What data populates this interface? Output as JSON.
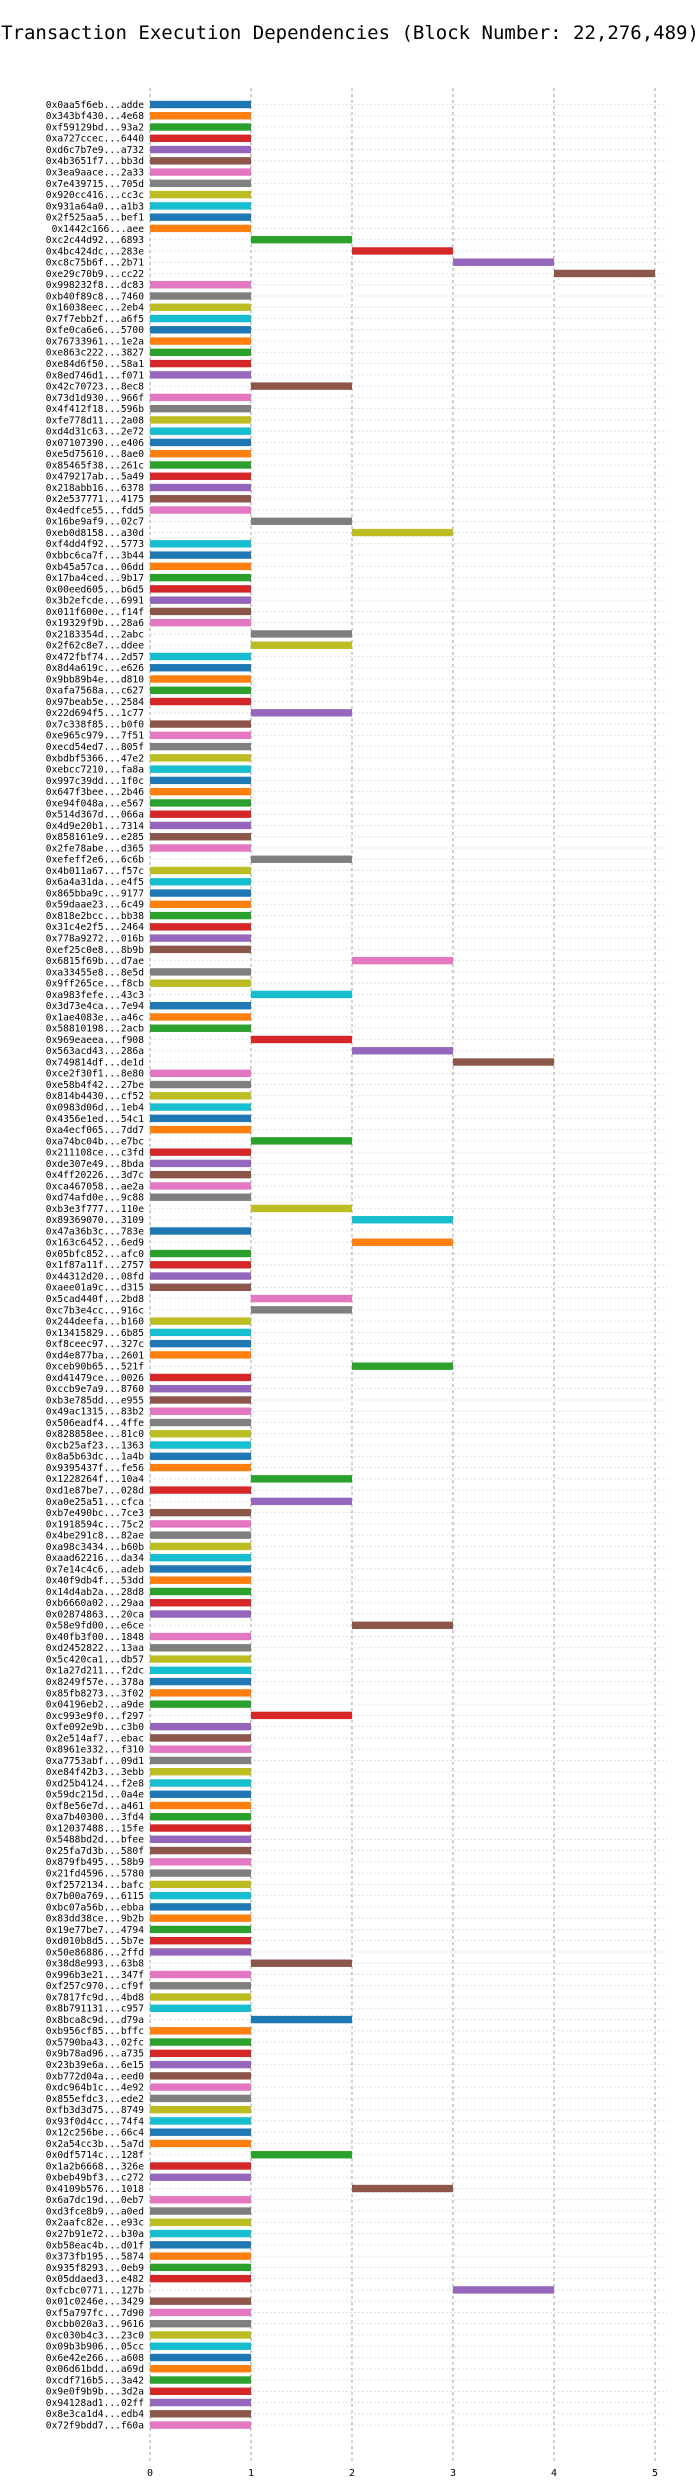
{
  "chart_data": {
    "type": "bar",
    "orientation": "horizontal-gantt",
    "title": "Transaction Execution Dependencies (Block Number: 22,276,489)",
    "xlabel": "",
    "ylabel": "",
    "xlim": [
      0,
      5
    ],
    "xticks": [
      "0",
      "1",
      "2",
      "3",
      "4",
      "5"
    ],
    "grid": true,
    "palette": [
      "#1f77b4",
      "#ff7f0e",
      "#2ca02c",
      "#d62728",
      "#9467bd",
      "#8c564b",
      "#e377c2",
      "#7f7f7f",
      "#bcbd22",
      "#17becf"
    ],
    "transactions": [
      {
        "label": "0x0aa5f6eb...adde",
        "start": 0,
        "end": 1
      },
      {
        "label": "0x343bf430...4e68",
        "start": 0,
        "end": 1
      },
      {
        "label": "0xf59129bd...93a2",
        "start": 0,
        "end": 1
      },
      {
        "label": "0xa727ccec...6440",
        "start": 0,
        "end": 1
      },
      {
        "label": "0xd6c7b7e9...a732",
        "start": 0,
        "end": 1
      },
      {
        "label": "0x4b3651f7...bb3d",
        "start": 0,
        "end": 1
      },
      {
        "label": "0x3ea9aace...2a33",
        "start": 0,
        "end": 1
      },
      {
        "label": "0x7e439715...705d",
        "start": 0,
        "end": 1
      },
      {
        "label": "0x920cc416...cc3c",
        "start": 0,
        "end": 1
      },
      {
        "label": "0x931a64a0...a1b3",
        "start": 0,
        "end": 1
      },
      {
        "label": "0x2f525aa5...bef1",
        "start": 0,
        "end": 1
      },
      {
        "label": "0x1442c166...aee",
        "start": 0,
        "end": 1
      },
      {
        "label": "0xc2c44d92...6893",
        "start": 1,
        "end": 2
      },
      {
        "label": "0x4bc424dc...283e",
        "start": 2,
        "end": 3
      },
      {
        "label": "0xc8c75b6f...2b71",
        "start": 3,
        "end": 4
      },
      {
        "label": "0xe29c70b9...cc22",
        "start": 4,
        "end": 5
      },
      {
        "label": "0x998232f8...dc83",
        "start": 0,
        "end": 1
      },
      {
        "label": "0xb40f89c8...7460",
        "start": 0,
        "end": 1
      },
      {
        "label": "0x16038eec...2eb4",
        "start": 0,
        "end": 1
      },
      {
        "label": "0x7f7ebb2f...a6f5",
        "start": 0,
        "end": 1
      },
      {
        "label": "0xfe0ca6e6...5700",
        "start": 0,
        "end": 1
      },
      {
        "label": "0x76733961...1e2a",
        "start": 0,
        "end": 1
      },
      {
        "label": "0xe863c222...3827",
        "start": 0,
        "end": 1
      },
      {
        "label": "0xe84d6f50...58a1",
        "start": 0,
        "end": 1
      },
      {
        "label": "0x8ed746d1...f071",
        "start": 0,
        "end": 1
      },
      {
        "label": "0x42c70723...8ec8",
        "start": 1,
        "end": 2
      },
      {
        "label": "0x73d1d930...966f",
        "start": 0,
        "end": 1
      },
      {
        "label": "0x4f412f18...596b",
        "start": 0,
        "end": 1
      },
      {
        "label": "0xfe778d11...2a08",
        "start": 0,
        "end": 1
      },
      {
        "label": "0xd4d31c63...2e72",
        "start": 0,
        "end": 1
      },
      {
        "label": "0x07107390...e406",
        "start": 0,
        "end": 1
      },
      {
        "label": "0xe5d75610...8ae0",
        "start": 0,
        "end": 1
      },
      {
        "label": "0x85465f38...261c",
        "start": 0,
        "end": 1
      },
      {
        "label": "0x479217ab...5a49",
        "start": 0,
        "end": 1
      },
      {
        "label": "0x218abb16...6378",
        "start": 0,
        "end": 1
      },
      {
        "label": "0x2e537771...4175",
        "start": 0,
        "end": 1
      },
      {
        "label": "0x4edfce55...fdd5",
        "start": 0,
        "end": 1
      },
      {
        "label": "0x16be9af9...02c7",
        "start": 1,
        "end": 2
      },
      {
        "label": "0xeb0d8158...a30d",
        "start": 2,
        "end": 3
      },
      {
        "label": "0xf4dd4f92...5773",
        "start": 0,
        "end": 1
      },
      {
        "label": "0xbbc6ca7f...3b44",
        "start": 0,
        "end": 1
      },
      {
        "label": "0xb45a57ca...06dd",
        "start": 0,
        "end": 1
      },
      {
        "label": "0x17ba4ced...9b17",
        "start": 0,
        "end": 1
      },
      {
        "label": "0x00eed605...b6d5",
        "start": 0,
        "end": 1
      },
      {
        "label": "0x3b2efcde...6991",
        "start": 0,
        "end": 1
      },
      {
        "label": "0x011f600e...f14f",
        "start": 0,
        "end": 1
      },
      {
        "label": "0x19329f9b...28a6",
        "start": 0,
        "end": 1
      },
      {
        "label": "0x2183354d...2abc",
        "start": 1,
        "end": 2
      },
      {
        "label": "0x2f62c8e7...ddee",
        "start": 1,
        "end": 2
      },
      {
        "label": "0x472fbf74...2d57",
        "start": 0,
        "end": 1
      },
      {
        "label": "0x8d4a619c...e626",
        "start": 0,
        "end": 1
      },
      {
        "label": "0x9bb89b4e...d810",
        "start": 0,
        "end": 1
      },
      {
        "label": "0xafa7568a...c627",
        "start": 0,
        "end": 1
      },
      {
        "label": "0x97beab5e...2584",
        "start": 0,
        "end": 1
      },
      {
        "label": "0x22d694f5...1c77",
        "start": 1,
        "end": 2
      },
      {
        "label": "0x7c338f85...b0f0",
        "start": 0,
        "end": 1
      },
      {
        "label": "0xe965c979...7f51",
        "start": 0,
        "end": 1
      },
      {
        "label": "0xecd54ed7...805f",
        "start": 0,
        "end": 1
      },
      {
        "label": "0xbdbf5366...47e2",
        "start": 0,
        "end": 1
      },
      {
        "label": "0xebcc7210...fa8a",
        "start": 0,
        "end": 1
      },
      {
        "label": "0x997c39dd...1f0c",
        "start": 0,
        "end": 1
      },
      {
        "label": "0x647f3bee...2b46",
        "start": 0,
        "end": 1
      },
      {
        "label": "0xe94f048a...e567",
        "start": 0,
        "end": 1
      },
      {
        "label": "0x514d367d...066a",
        "start": 0,
        "end": 1
      },
      {
        "label": "0x4d9e20b1...7314",
        "start": 0,
        "end": 1
      },
      {
        "label": "0x858161e9...e285",
        "start": 0,
        "end": 1
      },
      {
        "label": "0x2fe78abe...d365",
        "start": 0,
        "end": 1
      },
      {
        "label": "0xefeff2e6...6c6b",
        "start": 1,
        "end": 2
      },
      {
        "label": "0x4b011a67...f57c",
        "start": 0,
        "end": 1
      },
      {
        "label": "0x6a4a31da...e4f5",
        "start": 0,
        "end": 1
      },
      {
        "label": "0x865bba9c...9177",
        "start": 0,
        "end": 1
      },
      {
        "label": "0x59daae23...6c49",
        "start": 0,
        "end": 1
      },
      {
        "label": "0x818e2bcc...bb38",
        "start": 0,
        "end": 1
      },
      {
        "label": "0x31c4e2f5...2464",
        "start": 0,
        "end": 1
      },
      {
        "label": "0x778a9272...016b",
        "start": 0,
        "end": 1
      },
      {
        "label": "0xef25c0e8...8b9b",
        "start": 0,
        "end": 1
      },
      {
        "label": "0x6815f69b...d7ae",
        "start": 2,
        "end": 3
      },
      {
        "label": "0xa33455e8...8e5d",
        "start": 0,
        "end": 1
      },
      {
        "label": "0x9ff265ce...f8cb",
        "start": 0,
        "end": 1
      },
      {
        "label": "0xa983fefe...43c3",
        "start": 1,
        "end": 2
      },
      {
        "label": "0x3d73e4ca...7e94",
        "start": 0,
        "end": 1
      },
      {
        "label": "0x1ae4083e...a46c",
        "start": 0,
        "end": 1
      },
      {
        "label": "0x58810198...2acb",
        "start": 0,
        "end": 1
      },
      {
        "label": "0x969eaeea...f908",
        "start": 1,
        "end": 2
      },
      {
        "label": "0x563acd43...286a",
        "start": 2,
        "end": 3
      },
      {
        "label": "0x749814df...de1d",
        "start": 3,
        "end": 4
      },
      {
        "label": "0xce2f30f1...8e80",
        "start": 0,
        "end": 1
      },
      {
        "label": "0xe58b4f42...27be",
        "start": 0,
        "end": 1
      },
      {
        "label": "0x814b4430...cf52",
        "start": 0,
        "end": 1
      },
      {
        "label": "0x0983d06d...1eb4",
        "start": 0,
        "end": 1
      },
      {
        "label": "0x4356e1ed...54c1",
        "start": 0,
        "end": 1
      },
      {
        "label": "0xa4ecf065...7dd7",
        "start": 0,
        "end": 1
      },
      {
        "label": "0xa74bc04b...e7bc",
        "start": 1,
        "end": 2
      },
      {
        "label": "0x211108ce...c3fd",
        "start": 0,
        "end": 1
      },
      {
        "label": "0xde307e49...8bda",
        "start": 0,
        "end": 1
      },
      {
        "label": "0x4ff20226...3d7c",
        "start": 0,
        "end": 1
      },
      {
        "label": "0xca467058...ae2a",
        "start": 0,
        "end": 1
      },
      {
        "label": "0xd74afd0e...9c88",
        "start": 0,
        "end": 1
      },
      {
        "label": "0xb3e3f777...110e",
        "start": 1,
        "end": 2
      },
      {
        "label": "0x89369070...3109",
        "start": 2,
        "end": 3
      },
      {
        "label": "0x47a36b3c...783e",
        "start": 0,
        "end": 1
      },
      {
        "label": "0x163c6452...6ed9",
        "start": 2,
        "end": 3
      },
      {
        "label": "0x05bfc852...afc0",
        "start": 0,
        "end": 1
      },
      {
        "label": "0x1f87a11f...2757",
        "start": 0,
        "end": 1
      },
      {
        "label": "0x44312d20...08fd",
        "start": 0,
        "end": 1
      },
      {
        "label": "0xaee01a9c...d315",
        "start": 0,
        "end": 1
      },
      {
        "label": "0x5cad440f...2bd8",
        "start": 1,
        "end": 2
      },
      {
        "label": "0xc7b3e4cc...916c",
        "start": 1,
        "end": 2
      },
      {
        "label": "0x244deefa...b160",
        "start": 0,
        "end": 1
      },
      {
        "label": "0x13415829...6b85",
        "start": 0,
        "end": 1
      },
      {
        "label": "0xf8ceec97...327c",
        "start": 0,
        "end": 1
      },
      {
        "label": "0xd4e877ba...2601",
        "start": 0,
        "end": 1
      },
      {
        "label": "0xceb90b65...521f",
        "start": 2,
        "end": 3
      },
      {
        "label": "0xd41479ce...0026",
        "start": 0,
        "end": 1
      },
      {
        "label": "0xccb9e7a9...8760",
        "start": 0,
        "end": 1
      },
      {
        "label": "0xb3e785dd...e955",
        "start": 0,
        "end": 1
      },
      {
        "label": "0x49ac1315...83b2",
        "start": 0,
        "end": 1
      },
      {
        "label": "0x506eadf4...4ffe",
        "start": 0,
        "end": 1
      },
      {
        "label": "0x828858ee...81c0",
        "start": 0,
        "end": 1
      },
      {
        "label": "0xcb25af23...1363",
        "start": 0,
        "end": 1
      },
      {
        "label": "0x8a5b63dc...1a4b",
        "start": 0,
        "end": 1
      },
      {
        "label": "0x9395437f...fe56",
        "start": 0,
        "end": 1
      },
      {
        "label": "0x1228264f...10a4",
        "start": 1,
        "end": 2
      },
      {
        "label": "0xd1e87be7...028d",
        "start": 0,
        "end": 1
      },
      {
        "label": "0xa0e25a51...cfca",
        "start": 1,
        "end": 2
      },
      {
        "label": "0xb7e490bc...7ce3",
        "start": 0,
        "end": 1
      },
      {
        "label": "0x1918594c...75c2",
        "start": 0,
        "end": 1
      },
      {
        "label": "0x4be291c8...82ae",
        "start": 0,
        "end": 1
      },
      {
        "label": "0xa98c3434...b60b",
        "start": 0,
        "end": 1
      },
      {
        "label": "0xaad62216...da34",
        "start": 0,
        "end": 1
      },
      {
        "label": "0x7e14c4c6...adeb",
        "start": 0,
        "end": 1
      },
      {
        "label": "0x40f9db4f...53dd",
        "start": 0,
        "end": 1
      },
      {
        "label": "0x14d4ab2a...28d8",
        "start": 0,
        "end": 1
      },
      {
        "label": "0xb6660a02...29aa",
        "start": 0,
        "end": 1
      },
      {
        "label": "0x02874863...20ca",
        "start": 0,
        "end": 1
      },
      {
        "label": "0x58e9fd00...e6ce",
        "start": 2,
        "end": 3
      },
      {
        "label": "0x40fb3f00...1848",
        "start": 0,
        "end": 1
      },
      {
        "label": "0xd2452822...13aa",
        "start": 0,
        "end": 1
      },
      {
        "label": "0x5c420ca1...db57",
        "start": 0,
        "end": 1
      },
      {
        "label": "0x1a27d211...f2dc",
        "start": 0,
        "end": 1
      },
      {
        "label": "0x8249f57e...378a",
        "start": 0,
        "end": 1
      },
      {
        "label": "0x85fb8273...3f02",
        "start": 0,
        "end": 1
      },
      {
        "label": "0x04196eb2...a9de",
        "start": 0,
        "end": 1
      },
      {
        "label": "0xc993e9f0...f297",
        "start": 1,
        "end": 2
      },
      {
        "label": "0xfe092e9b...c3b0",
        "start": 0,
        "end": 1
      },
      {
        "label": "0x2e514af7...ebac",
        "start": 0,
        "end": 1
      },
      {
        "label": "0x8961e332...f310",
        "start": 0,
        "end": 1
      },
      {
        "label": "0xa7753abf...09d1",
        "start": 0,
        "end": 1
      },
      {
        "label": "0xe84f42b3...3ebb",
        "start": 0,
        "end": 1
      },
      {
        "label": "0xd25b4124...f2e8",
        "start": 0,
        "end": 1
      },
      {
        "label": "0x59dc215d...0a4e",
        "start": 0,
        "end": 1
      },
      {
        "label": "0xf8e56e7d...a461",
        "start": 0,
        "end": 1
      },
      {
        "label": "0xa7b40300...3fd4",
        "start": 0,
        "end": 1
      },
      {
        "label": "0x12037488...15fe",
        "start": 0,
        "end": 1
      },
      {
        "label": "0x5488bd2d...bfee",
        "start": 0,
        "end": 1
      },
      {
        "label": "0x25fa7d3b...580f",
        "start": 0,
        "end": 1
      },
      {
        "label": "0x879fb495...58b9",
        "start": 0,
        "end": 1
      },
      {
        "label": "0x21fd4596...5780",
        "start": 0,
        "end": 1
      },
      {
        "label": "0xf2572134...bafc",
        "start": 0,
        "end": 1
      },
      {
        "label": "0x7b00a769...6115",
        "start": 0,
        "end": 1
      },
      {
        "label": "0xbc07a56b...ebba",
        "start": 0,
        "end": 1
      },
      {
        "label": "0x83dd38ce...9b2b",
        "start": 0,
        "end": 1
      },
      {
        "label": "0x19e77be7...4794",
        "start": 0,
        "end": 1
      },
      {
        "label": "0xd010b8d5...5b7e",
        "start": 0,
        "end": 1
      },
      {
        "label": "0x50e86886...2ffd",
        "start": 0,
        "end": 1
      },
      {
        "label": "0x38d8e993...63b8",
        "start": 1,
        "end": 2
      },
      {
        "label": "0x996b3e21...347f",
        "start": 0,
        "end": 1
      },
      {
        "label": "0xf257c970...cf9f",
        "start": 0,
        "end": 1
      },
      {
        "label": "0x7817fc9d...4bd8",
        "start": 0,
        "end": 1
      },
      {
        "label": "0x8b791131...c957",
        "start": 0,
        "end": 1
      },
      {
        "label": "0x8bca8c9d...d79a",
        "start": 1,
        "end": 2
      },
      {
        "label": "0xb956cf85...bffc",
        "start": 0,
        "end": 1
      },
      {
        "label": "0x5790ba43...02fc",
        "start": 0,
        "end": 1
      },
      {
        "label": "0x9b78ad96...a735",
        "start": 0,
        "end": 1
      },
      {
        "label": "0x23b39e6a...6e15",
        "start": 0,
        "end": 1
      },
      {
        "label": "0xb772d04a...eed0",
        "start": 0,
        "end": 1
      },
      {
        "label": "0xdc964b1c...4e92",
        "start": 0,
        "end": 1
      },
      {
        "label": "0x855efdc3...ede2",
        "start": 0,
        "end": 1
      },
      {
        "label": "0xfb3d3d75...8749",
        "start": 0,
        "end": 1
      },
      {
        "label": "0x93f0d4cc...74f4",
        "start": 0,
        "end": 1
      },
      {
        "label": "0x12c256be...66c4",
        "start": 0,
        "end": 1
      },
      {
        "label": "0x2a54cc3b...5a7d",
        "start": 0,
        "end": 1
      },
      {
        "label": "0x0df5714c...128f",
        "start": 1,
        "end": 2
      },
      {
        "label": "0x1a2b6668...326e",
        "start": 0,
        "end": 1
      },
      {
        "label": "0xbeb49bf3...c272",
        "start": 0,
        "end": 1
      },
      {
        "label": "0x4109b576...1018",
        "start": 2,
        "end": 3
      },
      {
        "label": "0x6a7dc19d...0eb7",
        "start": 0,
        "end": 1
      },
      {
        "label": "0xd3fce8b9...a0ed",
        "start": 0,
        "end": 1
      },
      {
        "label": "0x2aafc82e...e93c",
        "start": 0,
        "end": 1
      },
      {
        "label": "0x27b91e72...b30a",
        "start": 0,
        "end": 1
      },
      {
        "label": "0xb58eac4b...d01f",
        "start": 0,
        "end": 1
      },
      {
        "label": "0x373fb195...5874",
        "start": 0,
        "end": 1
      },
      {
        "label": "0x935f8293...0eb9",
        "start": 0,
        "end": 1
      },
      {
        "label": "0x05ddaed3...e482",
        "start": 0,
        "end": 1
      },
      {
        "label": "0xfcbc0771...127b",
        "start": 3,
        "end": 4
      },
      {
        "label": "0x01c0246e...3429",
        "start": 0,
        "end": 1
      },
      {
        "label": "0xf5a797fc...7d90",
        "start": 0,
        "end": 1
      },
      {
        "label": "0xcbb020a3...9616",
        "start": 0,
        "end": 1
      },
      {
        "label": "0xc030b4c3...23c0",
        "start": 0,
        "end": 1
      },
      {
        "label": "0x09b3b906...05cc",
        "start": 0,
        "end": 1
      },
      {
        "label": "0x6e42e266...a608",
        "start": 0,
        "end": 1
      },
      {
        "label": "0x06d61bdd...a69d",
        "start": 0,
        "end": 1
      },
      {
        "label": "0xcdf716b5...3a42",
        "start": 0,
        "end": 1
      },
      {
        "label": "0x9e0f9b9b...3d2a",
        "start": 0,
        "end": 1
      },
      {
        "label": "0x94128ad1...02ff",
        "start": 0,
        "end": 1
      },
      {
        "label": "0x8e3ca1d4...edb4",
        "start": 0,
        "end": 1
      },
      {
        "label": "0x72f9bdd7...f60a",
        "start": 0,
        "end": 1
      }
    ]
  }
}
